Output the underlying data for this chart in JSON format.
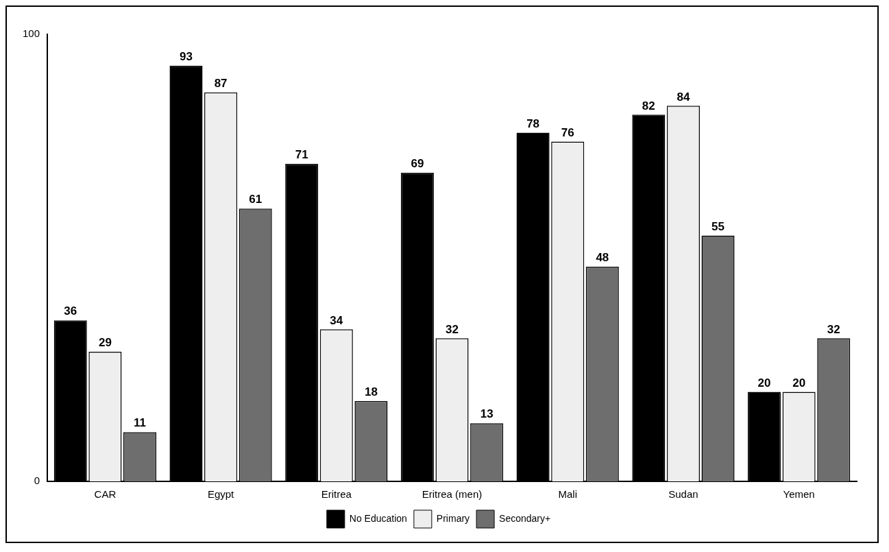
{
  "chart_data": {
    "type": "bar",
    "categories": [
      "CAR",
      "Egypt",
      "Eritrea",
      "Eritrea (men)",
      "Mali",
      "Sudan",
      "Yemen"
    ],
    "series": [
      {
        "name": "No Education",
        "color": "#000000",
        "values": [
          36,
          93,
          71,
          69,
          78,
          82,
          20
        ]
      },
      {
        "name": "Primary",
        "color": "#eeeeee",
        "values": [
          29,
          87,
          34,
          32,
          76,
          84,
          20
        ]
      },
      {
        "name": "Secondary+",
        "color": "#6e6e6e",
        "values": [
          11,
          61,
          18,
          13,
          48,
          55,
          32
        ]
      }
    ],
    "ylim": [
      0,
      100
    ],
    "yticks": [
      0,
      100
    ],
    "grid": false,
    "legend": "bottom",
    "data_labels": true
  }
}
